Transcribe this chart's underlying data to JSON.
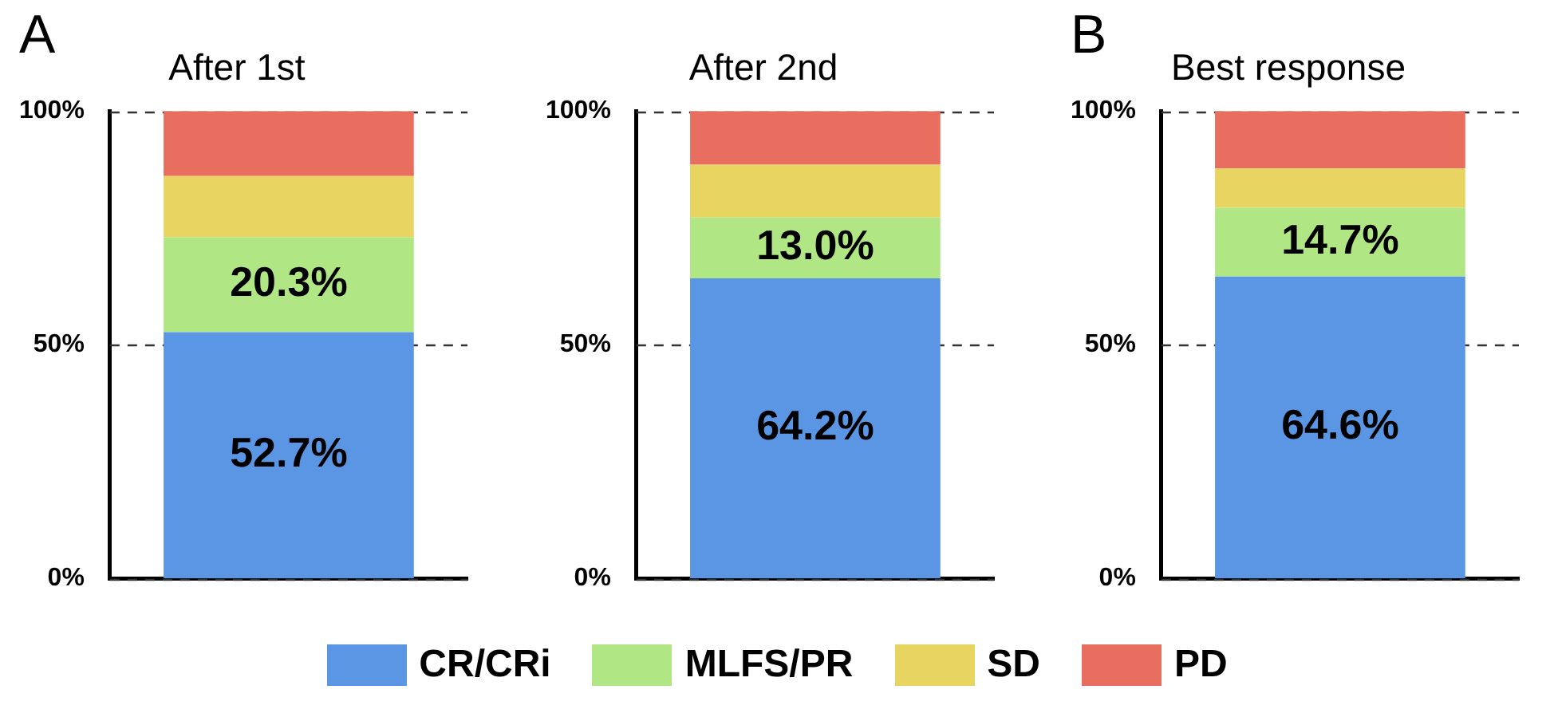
{
  "chart_data": [
    {
      "type": "bar",
      "title": "After 1st",
      "stacked": true,
      "categories": [
        null
      ],
      "ylim": [
        0,
        100
      ],
      "yticks": [
        {
          "value": 0,
          "label": "0%"
        },
        {
          "value": 50,
          "label": "50%"
        },
        {
          "value": 100,
          "label": "100%"
        }
      ],
      "grid": "y",
      "legend": "bottom",
      "annotations": [
        "A"
      ],
      "series": [
        {
          "name": "CR/CRi",
          "color": "#5b96e5",
          "values": [
            52.7
          ],
          "value_labels": [
            "52.7%"
          ]
        },
        {
          "name": "MLFS/PR",
          "color": "#b0e784",
          "values": [
            20.3
          ],
          "value_labels": [
            "20.3%"
          ]
        },
        {
          "name": "SD",
          "color": "#e8d461",
          "values": [
            13.1
          ],
          "value_labels": [
            null
          ]
        },
        {
          "name": "PD",
          "color": "#e86e60",
          "values": [
            13.9
          ],
          "value_labels": [
            null
          ]
        }
      ]
    },
    {
      "type": "bar",
      "title": "After 2nd",
      "stacked": true,
      "categories": [
        null
      ],
      "ylim": [
        0,
        100
      ],
      "yticks": [
        {
          "value": 0,
          "label": "0%"
        },
        {
          "value": 50,
          "label": "50%"
        },
        {
          "value": 100,
          "label": "100%"
        }
      ],
      "grid": "y",
      "series": [
        {
          "color": "#5b96e5",
          "values": [
            64.2
          ],
          "value_labels": [
            "64.2%"
          ]
        },
        {
          "color": "#b0e784",
          "values": [
            13.0
          ],
          "value_labels": [
            "13.0%"
          ]
        },
        {
          "color": "#e8d461",
          "values": [
            11.3
          ],
          "value_labels": [
            null
          ]
        },
        {
          "color": "#e86e60",
          "values": [
            11.5
          ],
          "value_labels": [
            null
          ]
        }
      ]
    },
    {
      "type": "bar",
      "title": "Best response",
      "stacked": true,
      "categories": [
        null
      ],
      "ylim": [
        0,
        100
      ],
      "yticks": [
        {
          "value": 0,
          "label": "0%"
        },
        {
          "value": 50,
          "label": "50%"
        },
        {
          "value": 100,
          "label": "100%"
        }
      ],
      "grid": "y",
      "annotations": [
        "B"
      ],
      "series": [
        {
          "color": "#5b96e5",
          "values": [
            64.6
          ],
          "value_labels": [
            "64.6%"
          ]
        },
        {
          "color": "#b0e784",
          "values": [
            14.7
          ],
          "value_labels": [
            "14.7%"
          ]
        },
        {
          "color": "#e8d461",
          "values": [
            8.4
          ],
          "value_labels": [
            null
          ]
        },
        {
          "color": "#e86e60",
          "values": [
            12.3
          ],
          "value_labels": [
            null
          ]
        }
      ]
    }
  ]
}
